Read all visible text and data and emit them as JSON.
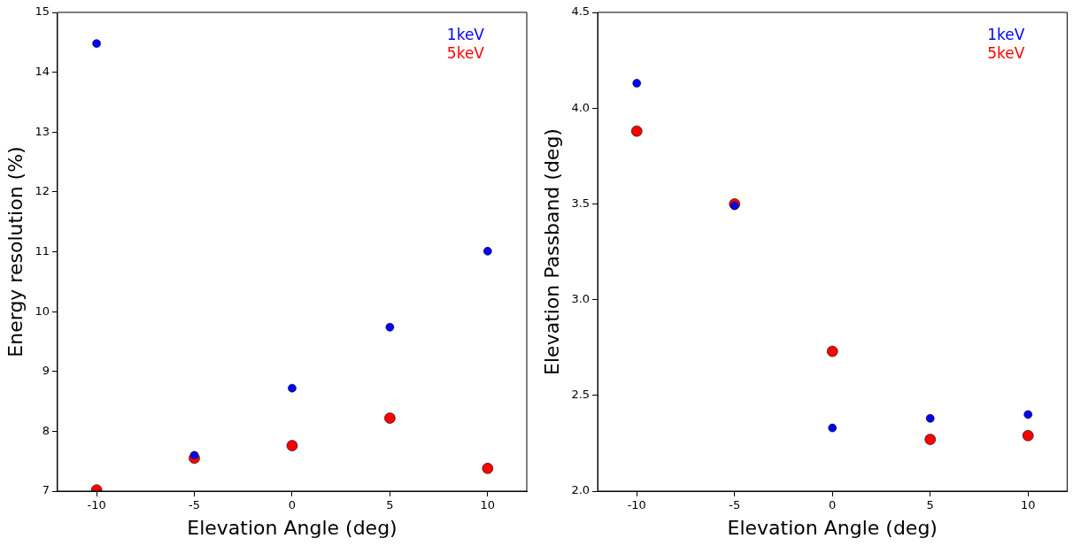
{
  "chart_data": [
    {
      "type": "scatter",
      "xlabel": "Elevation Angle (deg)",
      "ylabel": "Energy resolution (%)",
      "x": [
        -10,
        -5,
        0,
        5,
        10
      ],
      "xlim": [
        -12,
        12
      ],
      "xticks": [
        -10,
        -5,
        0,
        5,
        10
      ],
      "ylim": [
        7,
        15
      ],
      "yticks": [
        7,
        8,
        9,
        10,
        11,
        12,
        13,
        14,
        15
      ],
      "grid": false,
      "legend": "top right",
      "marker": "circle",
      "series": [
        {
          "name": "1keV",
          "color": "#0000ff",
          "values": [
            14.48,
            7.6,
            8.72,
            9.74,
            11.01
          ]
        },
        {
          "name": "5keV",
          "color": "#ff0000",
          "values": [
            7.02,
            7.55,
            7.76,
            8.22,
            7.38
          ]
        }
      ]
    },
    {
      "type": "scatter",
      "xlabel": "Elevation Angle (deg)",
      "ylabel": "Elevation Passband (deg)",
      "x": [
        -10,
        -5,
        0,
        5,
        10
      ],
      "xlim": [
        -12,
        12
      ],
      "xticks": [
        -10,
        -5,
        0,
        5,
        10
      ],
      "ylim": [
        2.0,
        4.5
      ],
      "yticks": [
        {
          "value": 2.0,
          "label": "2.0"
        },
        {
          "value": 2.5,
          "label": "2.5"
        },
        {
          "value": 3.0,
          "label": "3.0"
        },
        {
          "value": 3.5,
          "label": "3.5"
        },
        {
          "value": 4.0,
          "label": "4.0"
        },
        {
          "value": 4.5,
          "label": "4.5"
        }
      ],
      "grid": false,
      "legend": "top right",
      "marker": "circle",
      "series": [
        {
          "name": "1keV",
          "color": "#0000ff",
          "values": [
            4.13,
            3.49,
            2.33,
            2.38,
            2.4
          ]
        },
        {
          "name": "5keV",
          "color": "#ff0000",
          "values": [
            3.88,
            3.5,
            2.73,
            2.27,
            2.29
          ]
        }
      ]
    }
  ]
}
